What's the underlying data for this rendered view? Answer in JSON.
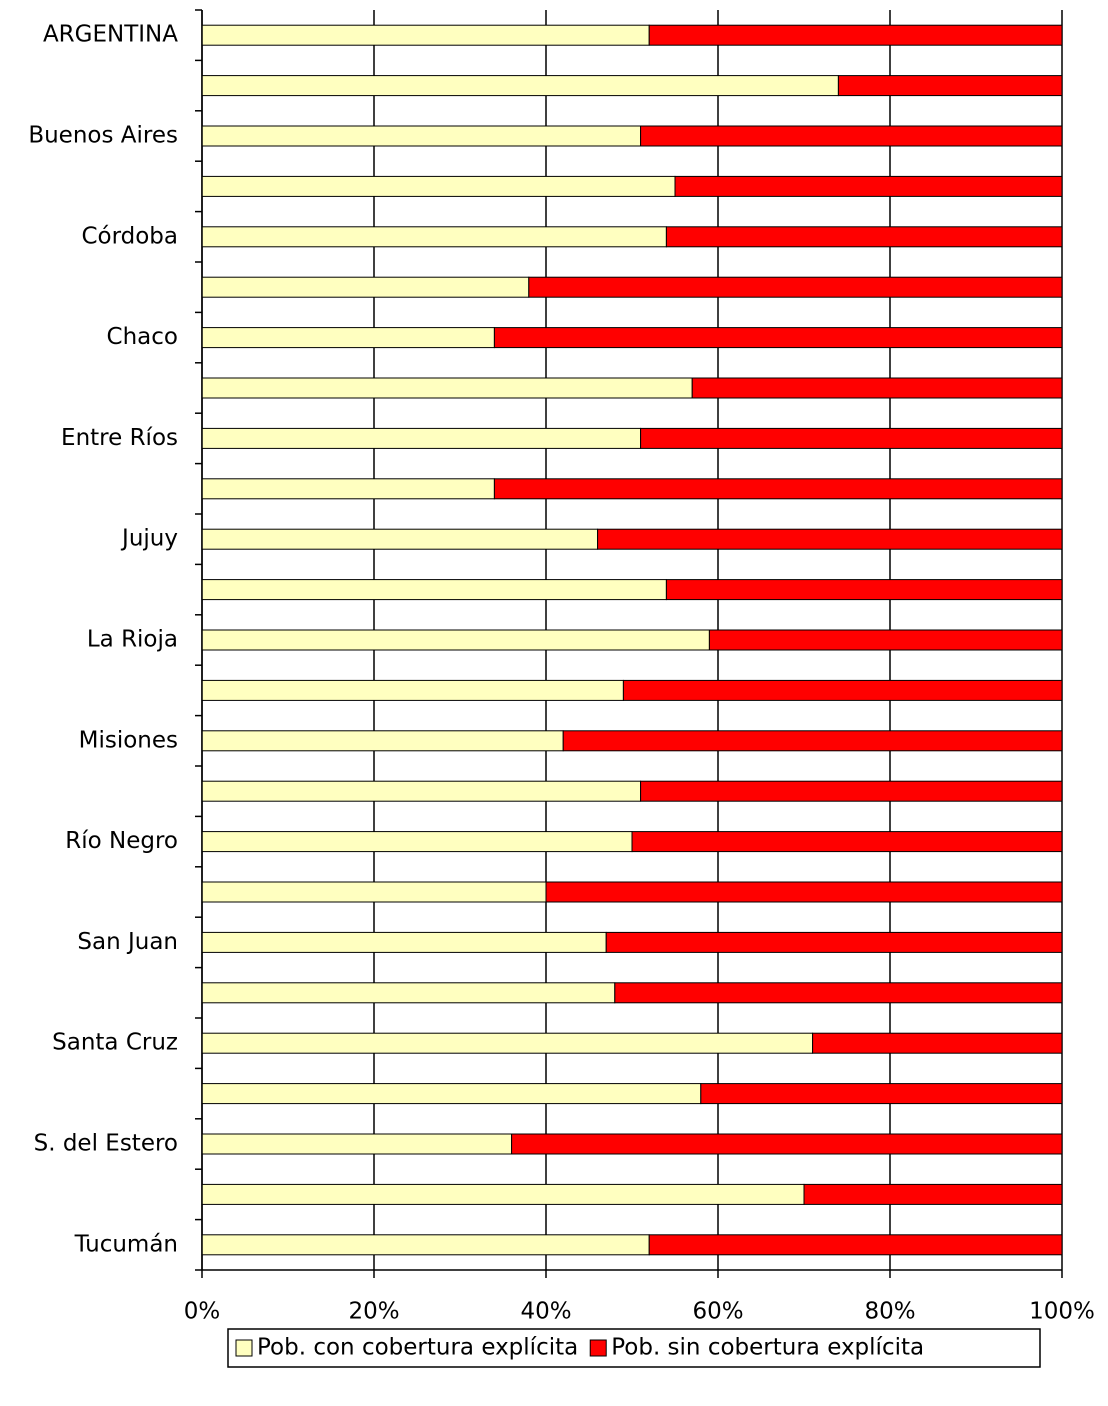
{
  "chart_data": {
    "type": "stacked-barh",
    "categories": [
      "ARGENTINA",
      null,
      "Buenos Aires",
      null,
      "Córdoba",
      null,
      "Chaco",
      null,
      "Entre Ríos",
      null,
      "Jujuy",
      null,
      "La Rioja",
      null,
      "Misiones",
      null,
      "Río Negro",
      null,
      "San Juan",
      null,
      "Santa Cruz",
      null,
      "S. del Estero",
      null,
      "Tucumán"
    ],
    "series": [
      {
        "name": "Pob. con cobertura explícita",
        "color": "#ffffc0",
        "values": [
          52,
          74,
          51,
          55,
          54,
          38,
          34,
          57,
          51,
          34,
          46,
          54,
          59,
          49,
          42,
          51,
          50,
          40,
          47,
          48,
          71,
          58,
          36,
          70,
          52
        ]
      },
      {
        "name": "Pob. sin cobertura explícita",
        "color": "#ff0000",
        "values": [
          48,
          26,
          49,
          45,
          46,
          62,
          66,
          43,
          49,
          66,
          54,
          46,
          41,
          51,
          58,
          49,
          50,
          60,
          53,
          52,
          29,
          42,
          64,
          30,
          48
        ]
      }
    ],
    "xlim": [
      0,
      100
    ],
    "xticks": [
      {
        "value": 0,
        "label": "0%"
      },
      {
        "value": 20,
        "label": "20%"
      },
      {
        "value": 40,
        "label": "40%"
      },
      {
        "value": 60,
        "label": "60%"
      },
      {
        "value": 80,
        "label": "80%"
      },
      {
        "value": 100,
        "label": "100%"
      }
    ],
    "grid": true,
    "legend": "bottom"
  }
}
